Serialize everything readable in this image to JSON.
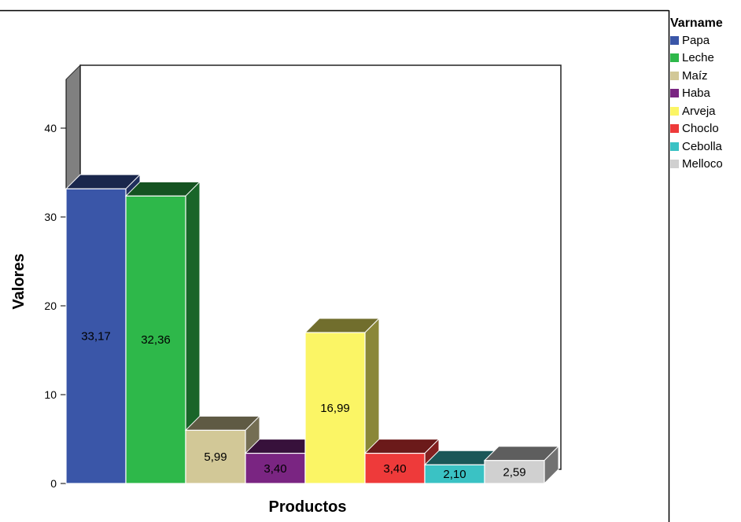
{
  "chart_data": {
    "type": "bar",
    "xlabel": "Productos",
    "ylabel": "Valores",
    "categories": [
      "Papa",
      "Leche",
      "Maíz",
      "Haba",
      "Arveja",
      "Choclo",
      "Cebolla",
      "Melloco"
    ],
    "values": [
      33.17,
      32.36,
      5.99,
      3.4,
      16.99,
      3.4,
      2.1,
      2.59
    ],
    "value_labels": [
      "33,17",
      "32,36",
      "5,99",
      "3,40",
      "16,99",
      "3,40",
      "2,10",
      "2,59"
    ],
    "yticks": [
      "0",
      "10",
      "20",
      "30",
      "40"
    ],
    "ylim": [
      0,
      40
    ],
    "grid": false,
    "legend": {
      "title": "Varname",
      "position": "right"
    },
    "colors": [
      "#3a56a8",
      "#2eb84a",
      "#d2c897",
      "#7a2582",
      "#fbf565",
      "#ee3a3a",
      "#3ac2c4",
      "#d0d0d0"
    ]
  }
}
